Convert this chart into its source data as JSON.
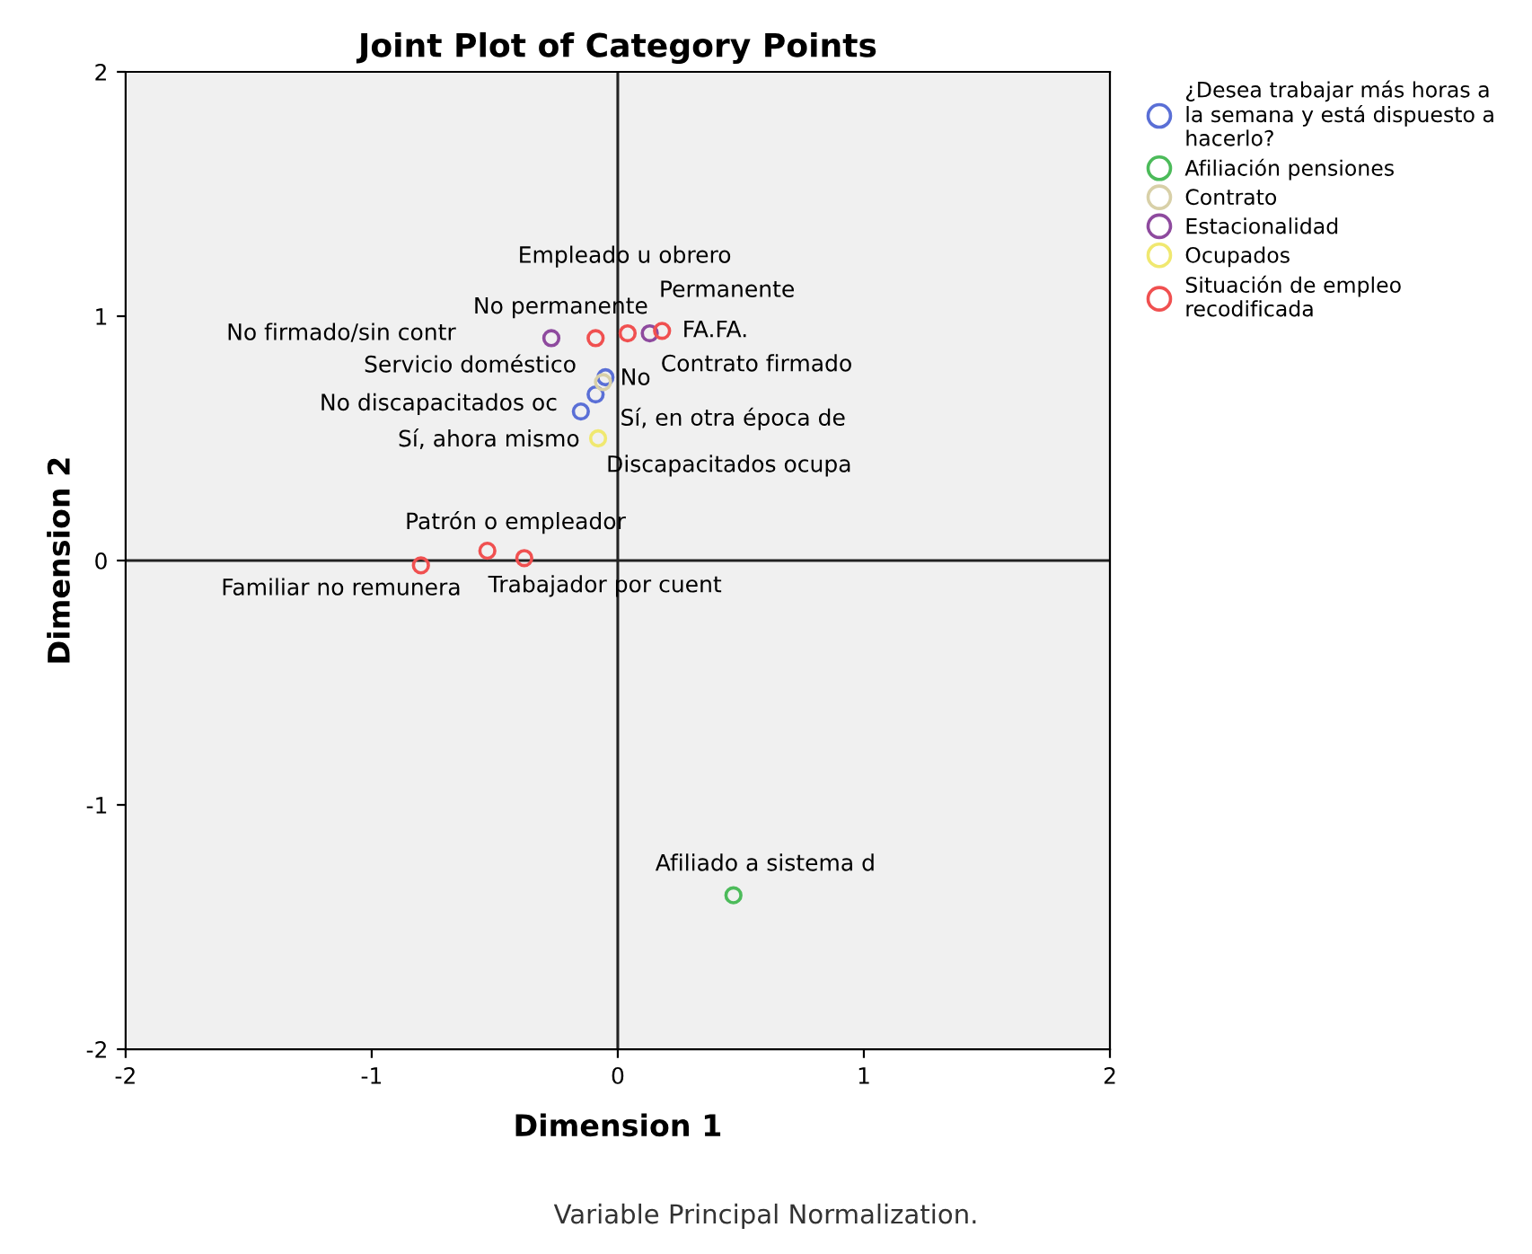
{
  "chart_data": {
    "type": "scatter",
    "title": "Joint Plot of Category Points",
    "xlabel": "Dimension 1",
    "ylabel": "Dimension 2",
    "series": [
      {
        "type": "line",
        "marker": "none",
        "color": "#222222",
        "x": [
          0,
          0
        ],
        "values": [
          -2,
          2
        ]
      },
      {
        "type": "line",
        "marker": "none",
        "color": "#222222",
        "x": [
          -2,
          2
        ],
        "values": [
          0,
          0
        ]
      },
      {
        "name": "¿Desea trabajar más horas a la semana y está dispuesto a hacerlo?",
        "color": "#5a6fd6",
        "x": [
          -0.05,
          -0.09,
          -0.15
        ],
        "values": [
          0.75,
          0.68,
          0.61
        ]
      },
      {
        "name": "Afiliación pensiones",
        "color": "#4cbb5a",
        "x": [
          0.47
        ],
        "values": [
          -1.37
        ]
      },
      {
        "name": "Contrato",
        "color": "#d8d0a8",
        "x": [
          -0.06
        ],
        "values": [
          0.73
        ]
      },
      {
        "name": "Estacionalidad",
        "color": "#8e4a9e",
        "x": [
          -0.27,
          0.13
        ],
        "values": [
          0.91,
          0.93
        ]
      },
      {
        "name": "Ocupados",
        "color": "#f0e870",
        "x": [
          -0.08
        ],
        "values": [
          0.5
        ]
      },
      {
        "name": "Situación de empleo recodificada",
        "color": "#f05050",
        "x": [
          -0.09,
          0.04,
          0.18,
          -0.53,
          -0.38,
          -0.8
        ],
        "values": [
          0.91,
          0.93,
          0.94,
          0.04,
          0.01,
          -0.02
        ]
      }
    ],
    "marker": "circle",
    "legend": "top right",
    "grid": false,
    "xlim": [
      -2,
      2
    ],
    "ylim": [
      -2,
      2
    ],
    "xticks": [
      -2,
      -1,
      0,
      1,
      2
    ],
    "yticks": [
      -2,
      -1,
      0,
      1,
      2
    ],
    "annotations": [
      "Empleado u obrero",
      "Permanente",
      "No permanente",
      "No firmado/sin contr",
      "FA.FA.",
      "Servicio doméstico",
      "No",
      "Contrato firmado",
      "No discapacitados oc",
      "Sí, en otra época de",
      "Sí, ahora mismo",
      "Discapacitados ocupa",
      "Patrón o empleador",
      "Familiar no remunera",
      "Trabajador por cuent",
      "Afiliado a sistema d",
      "Variable Principal Normalization."
    ]
  }
}
